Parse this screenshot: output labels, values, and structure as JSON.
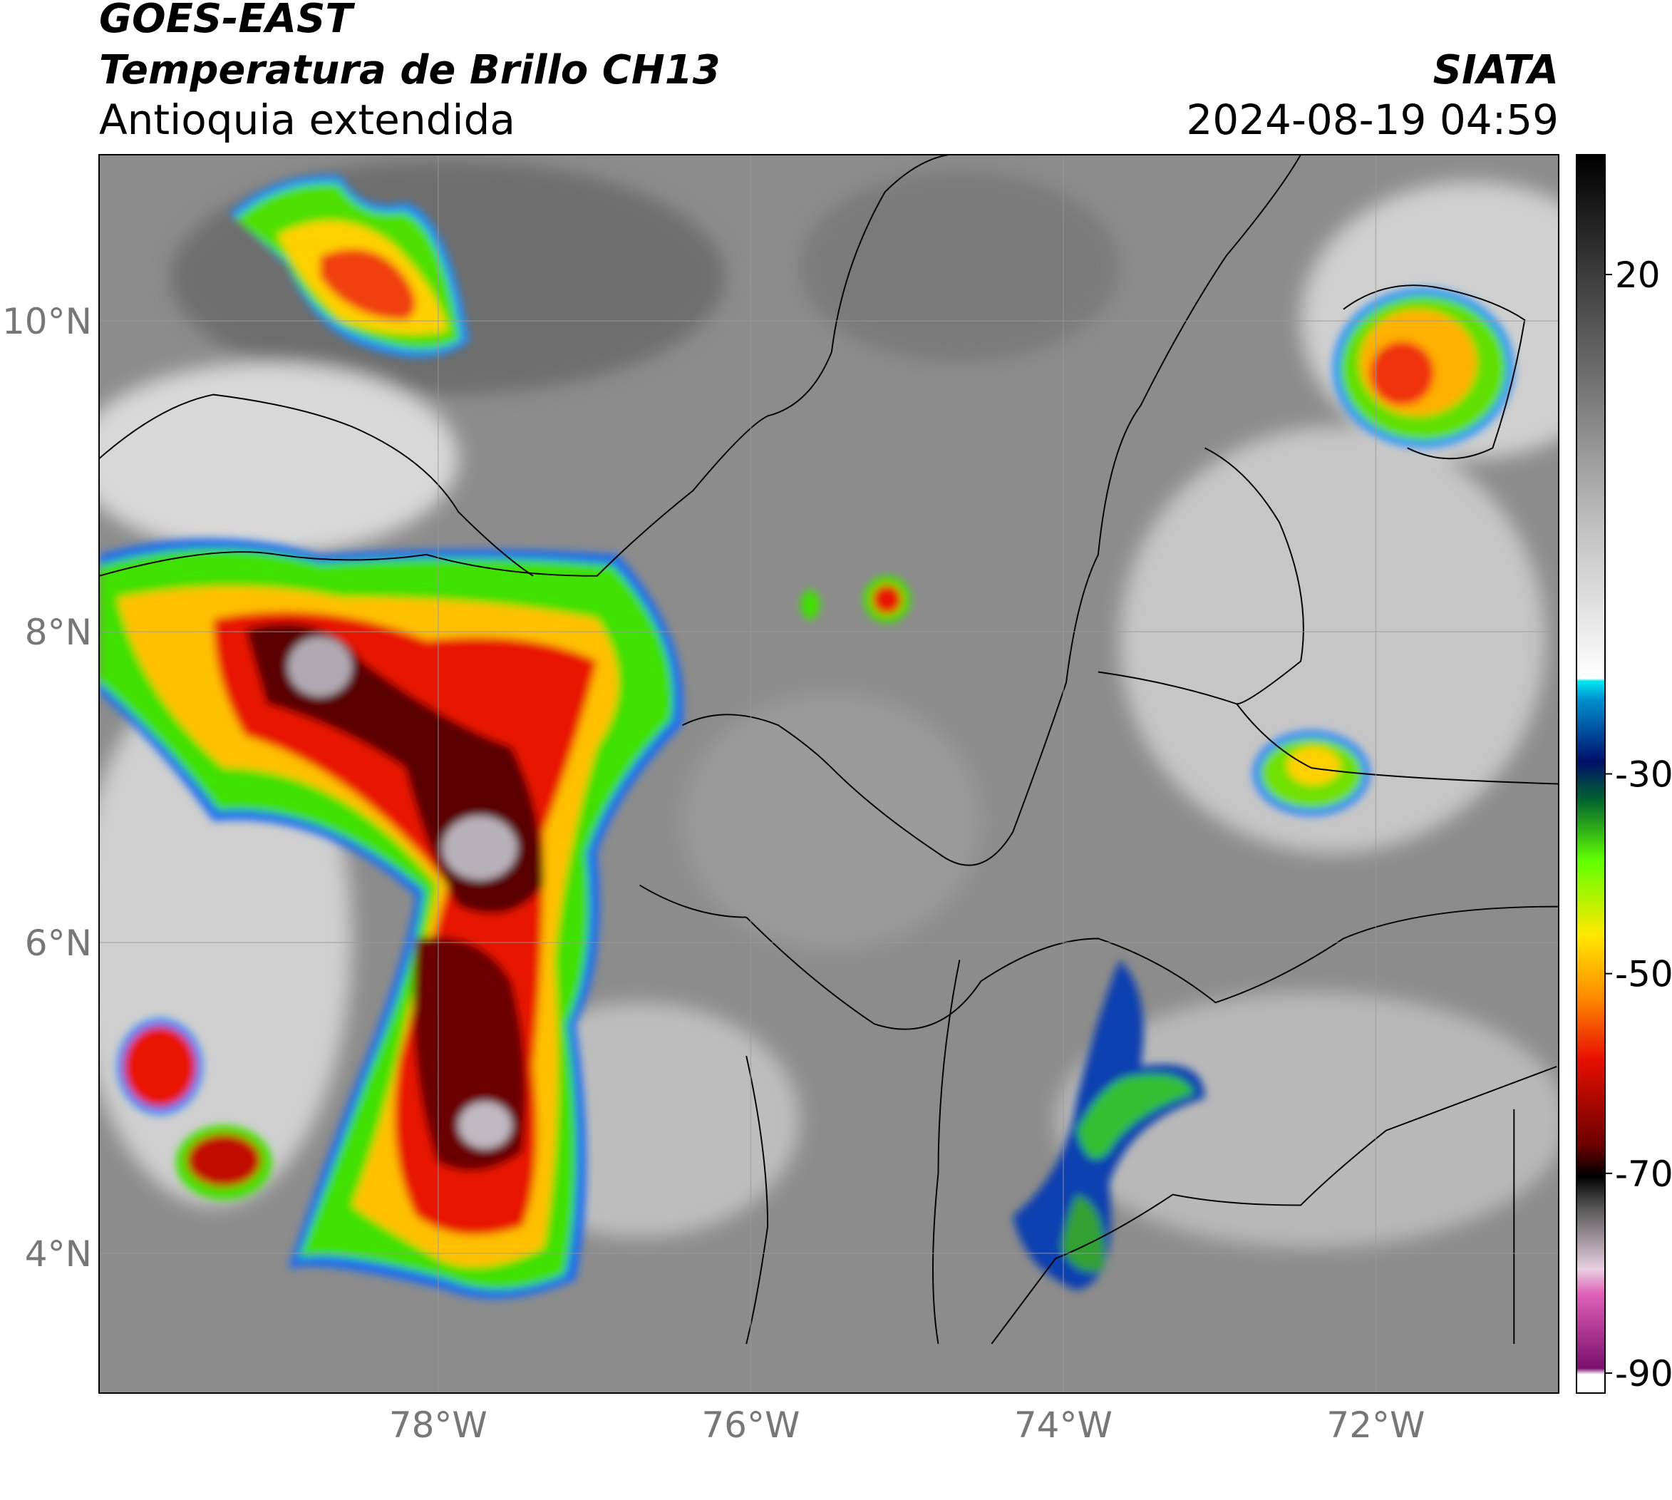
{
  "header": {
    "satellite": "GOES-EAST",
    "product": "Temperatura de Brillo CH13",
    "region": "Antioquia extendida",
    "source": "SIATA",
    "datetime": "2024-08-19 04:59"
  },
  "map": {
    "lonlim": [
      -80.17,
      -70.83
    ],
    "latlim": [
      3.1,
      11.07
    ],
    "lonticks": [
      {
        "value": -78,
        "label": "78°W"
      },
      {
        "value": -76,
        "label": "76°W"
      },
      {
        "value": -74,
        "label": "74°W"
      },
      {
        "value": -72,
        "label": "72°W"
      }
    ],
    "latticks": [
      {
        "value": 4,
        "label": "4°N"
      },
      {
        "value": 6,
        "label": "6°N"
      },
      {
        "value": 8,
        "label": "8°N"
      },
      {
        "value": 10,
        "label": "10°N"
      }
    ],
    "grid": true
  },
  "colorbar": {
    "clim": [
      -92,
      32
    ],
    "ticks": [
      20,
      -30,
      -50,
      -70,
      -90
    ]
  }
}
